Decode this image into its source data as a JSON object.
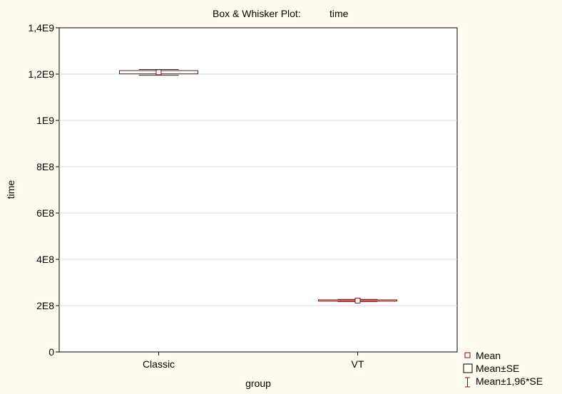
{
  "chart_data": {
    "type": "box",
    "title_prefix": "Box & Whisker Plot:",
    "title_variable": "time",
    "xlabel": "group",
    "ylabel": "time",
    "ylim": [
      0,
      1400000000
    ],
    "yticks": [
      0,
      200000000,
      400000000,
      600000000,
      800000000,
      1000000000,
      1200000000,
      1400000000
    ],
    "ytick_labels": [
      "0",
      "2E8",
      "4E8",
      "6E8",
      "8E8",
      "1E9",
      "1,2E9",
      "1,4E9"
    ],
    "categories": [
      "Classic",
      "VT"
    ],
    "series": [
      {
        "category": "Classic",
        "mean": 1208000000,
        "se_low": 1201000000,
        "se_high": 1215000000,
        "ci_low": 1195000000,
        "ci_high": 1220000000
      },
      {
        "category": "VT",
        "mean": 222000000,
        "se_low": 220000000,
        "se_high": 225000000,
        "ci_low": 218000000,
        "ci_high": 227000000
      }
    ],
    "grid": true,
    "legend_position": "bottom-right",
    "legend": [
      {
        "key": "mean",
        "label": "Mean"
      },
      {
        "key": "se",
        "label": "Mean±SE"
      },
      {
        "key": "ci",
        "label": "Mean±1,96*SE"
      }
    ],
    "colors": {
      "background": "#fffbf0",
      "plot_area": "#ffffff",
      "box_stroke": "#7a1010",
      "gridline": "#d8d8d8",
      "axis": "#000000"
    }
  }
}
